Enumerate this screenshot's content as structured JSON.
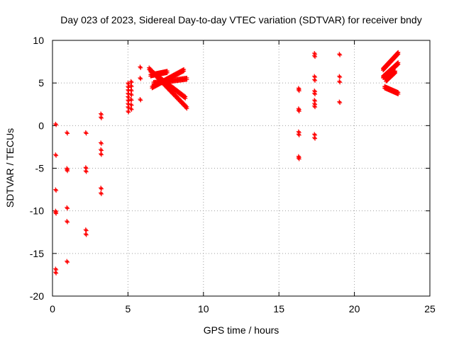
{
  "chart_data": {
    "type": "scatter",
    "title": "Day 023 of 2023, Sidereal Day-to-day VTEC variation (SDTVAR) for receiver bndy",
    "xlabel": "GPS time / hours",
    "ylabel": "SDTVAR / TECUs",
    "xlim": [
      0,
      25
    ],
    "ylim": [
      -20,
      10
    ],
    "xticks": [
      0,
      5,
      10,
      15,
      20,
      25
    ],
    "yticks": [
      -20,
      -15,
      -10,
      -5,
      0,
      5,
      10
    ],
    "grid": true,
    "marker": "+",
    "marker_color": "#ff0000",
    "series": [
      {
        "name": "SDTVAR",
        "clusters": [
          {
            "x": 0.2,
            "ys": [
              0.2,
              -3.4,
              -7.5,
              -10.0,
              -10.2,
              -16.8,
              -17.2
            ]
          },
          {
            "x": 0.95,
            "ys": [
              -0.8,
              -5.0,
              -5.2,
              -9.6,
              -11.2,
              -15.9
            ]
          },
          {
            "x": 2.2,
            "ys": [
              -0.8,
              -4.9,
              -5.3,
              -12.2,
              -12.7
            ]
          },
          {
            "x": 3.2,
            "ys": [
              1.4,
              1.0,
              -2.0,
              -2.8,
              -3.3,
              -7.3,
              -7.9
            ]
          },
          {
            "x": 5.0,
            "ys": [
              5.0,
              4.6,
              4.2,
              3.8,
              3.4,
              3.0,
              2.6,
              2.2,
              1.7
            ]
          },
          {
            "x": 5.2,
            "ys": [
              5.2,
              4.7,
              4.2,
              3.7,
              3.1,
              2.5,
              2.0
            ]
          },
          {
            "x": 5.8,
            "ys": [
              6.9,
              5.6,
              3.1
            ]
          },
          {
            "x": 16.3,
            "ys": [
              4.4,
              4.2,
              2.0,
              1.8,
              -0.7,
              -1.0,
              -3.6,
              -3.8
            ]
          },
          {
            "x": 17.35,
            "ys": [
              8.5,
              8.2,
              5.8,
              5.4,
              4.1,
              3.8,
              3.0,
              2.6,
              2.3,
              -1.0,
              -1.4
            ]
          },
          {
            "x": 19.0,
            "ys": [
              8.4,
              5.8,
              5.2,
              2.8
            ]
          }
        ],
        "traces": [
          {
            "x0": 6.4,
            "y0": 6.6,
            "x1": 8.9,
            "y1": 2.0
          },
          {
            "x0": 6.5,
            "y0": 6.3,
            "x1": 8.8,
            "y1": 3.2
          },
          {
            "x0": 6.6,
            "y0": 4.4,
            "x1": 8.7,
            "y1": 6.4
          },
          {
            "x0": 6.7,
            "y0": 4.9,
            "x1": 8.9,
            "y1": 5.4
          },
          {
            "x0": 6.5,
            "y0": 5.8,
            "x1": 7.6,
            "y1": 6.2
          },
          {
            "x0": 21.9,
            "y0": 6.5,
            "x1": 22.9,
            "y1": 8.4
          },
          {
            "x0": 21.9,
            "y0": 5.6,
            "x1": 22.9,
            "y1": 7.2
          },
          {
            "x0": 22.0,
            "y0": 4.4,
            "x1": 22.9,
            "y1": 3.7
          },
          {
            "x0": 22.1,
            "y0": 5.2,
            "x1": 22.7,
            "y1": 6.2
          }
        ]
      }
    ]
  }
}
